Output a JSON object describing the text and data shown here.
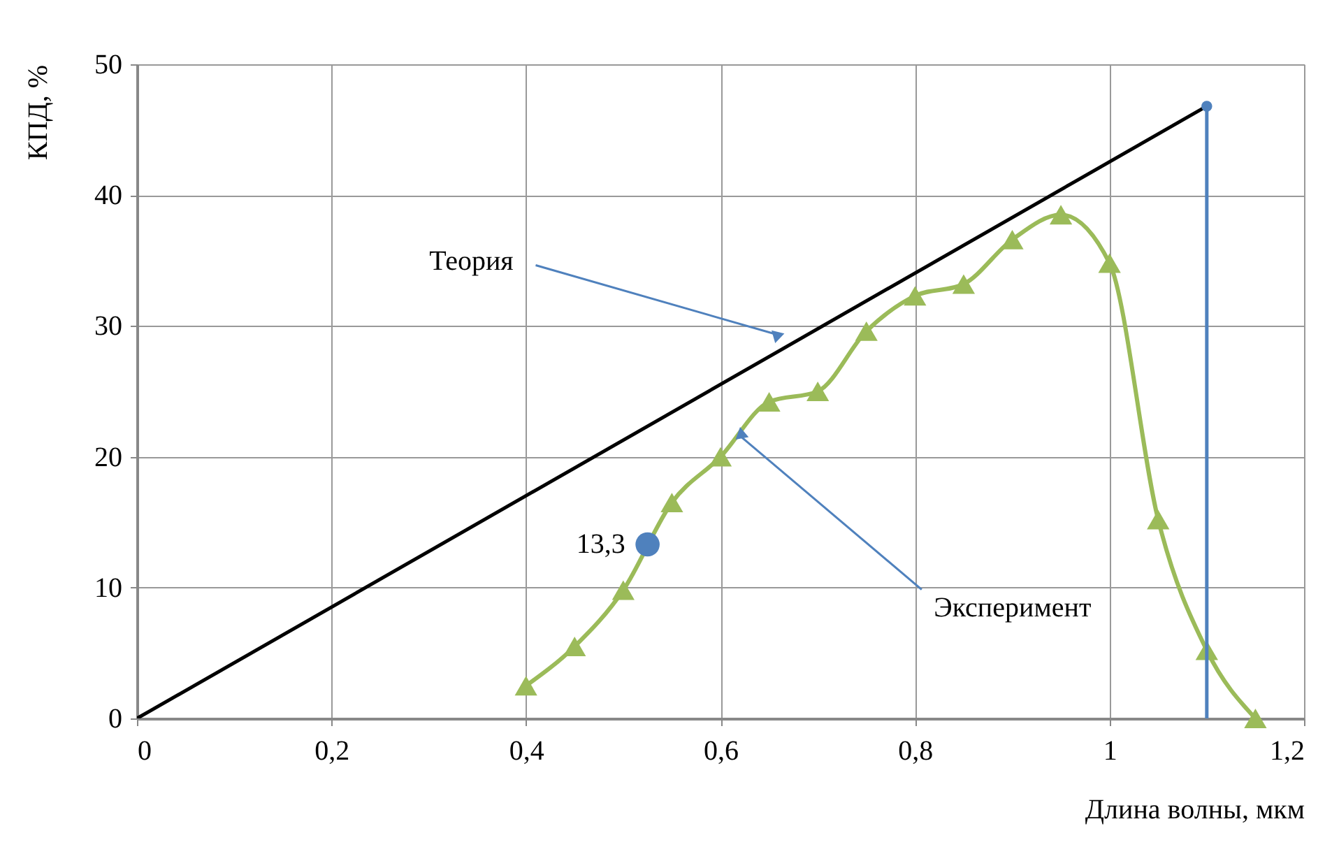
{
  "chart_data": {
    "type": "line",
    "xlabel": "Длина волны, мкм",
    "ylabel": "КПД, %",
    "xlim": [
      0,
      1.2
    ],
    "ylim": [
      0,
      50
    ],
    "xticks": [
      0,
      {
        "value": 0.2,
        "label": "0,2"
      },
      {
        "value": 0.4,
        "label": "0,4"
      },
      {
        "value": 0.6,
        "label": "0,6"
      },
      {
        "value": 0.8,
        "label": "0,8"
      },
      1,
      {
        "value": 1.2,
        "label": "1,2"
      }
    ],
    "yticks": [
      0,
      10,
      20,
      30,
      40,
      50
    ],
    "grid": true,
    "series": [
      {
        "color": "#000000",
        "marker": "none",
        "x": [
          0,
          1.1
        ],
        "values": [
          0,
          46.8
        ]
      },
      {
        "color": "#9bbb59",
        "marker": "triangle",
        "x": [
          0.4,
          0.45,
          0.5,
          0.55,
          0.6,
          0.65,
          0.7,
          0.75,
          0.8,
          0.85,
          0.9,
          0.95,
          1.0,
          1.05,
          1.1,
          1.15
        ],
        "values": [
          2.5,
          5.5,
          9.8,
          16.5,
          20,
          24.2,
          25,
          29.6,
          32.3,
          33.2,
          36.6,
          38.5,
          34.8,
          15.2,
          5.2,
          0
        ]
      },
      {
        "color": "#4f81bd",
        "marker": "none",
        "x": [
          1.1,
          1.1
        ],
        "values": [
          0,
          46.8
        ]
      },
      {
        "type": "scatter",
        "color": "#4f81bd",
        "marker": "circle",
        "x": [
          1.1
        ],
        "values": [
          46.8
        ]
      },
      {
        "type": "scatter",
        "color": "#4f81bd",
        "marker": "circle",
        "x": [
          0.525
        ],
        "values": [
          13.3
        ],
        "value_labels": [
          "13,3"
        ]
      }
    ],
    "annotations": [
      {
        "text": "Теория",
        "x": 0.66,
        "y": 29.3
      },
      {
        "text": "Эксперимент",
        "x": 0.62,
        "y": 21.6
      }
    ]
  }
}
